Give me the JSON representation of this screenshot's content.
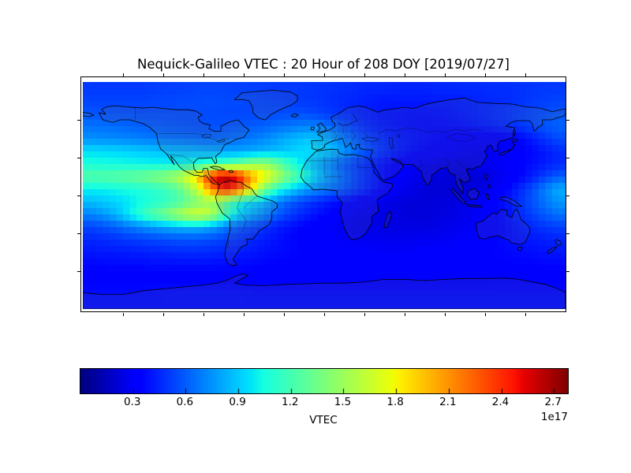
{
  "figure": {
    "title": "Nequick-Galileo VTEC : 20 Hour of 208 DOY [2019/07/27]",
    "background_color": "#ffffff"
  },
  "chart_data": {
    "type": "heatmap",
    "title": "Nequick-Galileo VTEC : 20 Hour of 208 DOY [2019/07/27]",
    "projection": "equirectangular world map",
    "colormap": "jet",
    "grid_off": true,
    "colorbar": {
      "label": "VTEC",
      "offset_label": "1e17",
      "orientation": "horizontal",
      "position": "bottom",
      "vmin": 0.0,
      "vmax": 2.78,
      "ticks": [
        0.3,
        0.6,
        0.9,
        1.2,
        1.5,
        1.8,
        2.1,
        2.4,
        2.7
      ],
      "tick_labels": [
        "0.3",
        "0.6",
        "0.9",
        "1.2",
        "1.5",
        "1.8",
        "2.1",
        "2.4",
        "2.7"
      ]
    },
    "x": {
      "label": "",
      "range": [
        -180,
        180
      ]
    },
    "y": {
      "label": "",
      "range": [
        -90,
        90
      ]
    },
    "grid": {
      "description": "VTEC values in units of 1e17, rows north-to-south (lat 85N..85S step 10), cols west-to-east (lon -175..175 step 10)",
      "n_cols": 36,
      "n_rows": 18,
      "values": [
        [
          0.5,
          0.5,
          0.5,
          0.5,
          0.5,
          0.51,
          0.52,
          0.52,
          0.53,
          0.53,
          0.53,
          0.52,
          0.52,
          0.51,
          0.5,
          0.5,
          0.5,
          0.49,
          0.48,
          0.47,
          0.46,
          0.45,
          0.45,
          0.44,
          0.44,
          0.44,
          0.45,
          0.45,
          0.46,
          0.46,
          0.47,
          0.47,
          0.48,
          0.49,
          0.5,
          0.5
        ],
        [
          0.53,
          0.53,
          0.53,
          0.53,
          0.53,
          0.54,
          0.54,
          0.55,
          0.55,
          0.56,
          0.55,
          0.55,
          0.54,
          0.53,
          0.52,
          0.51,
          0.5,
          0.49,
          0.47,
          0.45,
          0.44,
          0.42,
          0.41,
          0.41,
          0.41,
          0.41,
          0.42,
          0.42,
          0.43,
          0.44,
          0.45,
          0.46,
          0.48,
          0.5,
          0.52,
          0.53
        ],
        [
          0.58,
          0.57,
          0.56,
          0.56,
          0.55,
          0.55,
          0.55,
          0.55,
          0.55,
          0.55,
          0.54,
          0.54,
          0.54,
          0.55,
          0.55,
          0.56,
          0.56,
          0.53,
          0.5,
          0.47,
          0.44,
          0.42,
          0.4,
          0.39,
          0.38,
          0.38,
          0.39,
          0.4,
          0.42,
          0.44,
          0.46,
          0.48,
          0.51,
          0.54,
          0.56,
          0.58
        ],
        [
          0.66,
          0.65,
          0.64,
          0.62,
          0.6,
          0.59,
          0.58,
          0.57,
          0.56,
          0.56,
          0.57,
          0.58,
          0.59,
          0.61,
          0.64,
          0.67,
          0.7,
          0.7,
          0.63,
          0.55,
          0.49,
          0.44,
          0.41,
          0.39,
          0.38,
          0.37,
          0.37,
          0.38,
          0.39,
          0.41,
          0.43,
          0.46,
          0.49,
          0.53,
          0.58,
          0.62
        ],
        [
          0.74,
          0.73,
          0.72,
          0.71,
          0.69,
          0.67,
          0.65,
          0.64,
          0.63,
          0.62,
          0.63,
          0.65,
          0.68,
          0.72,
          0.78,
          0.84,
          0.88,
          0.88,
          0.8,
          0.68,
          0.58,
          0.51,
          0.46,
          0.42,
          0.4,
          0.38,
          0.36,
          0.34,
          0.32,
          0.31,
          0.3,
          0.32,
          0.35,
          0.42,
          0.49,
          0.55
        ],
        [
          0.96,
          0.95,
          0.94,
          0.92,
          0.9,
          0.88,
          0.86,
          0.85,
          0.84,
          0.82,
          0.8,
          0.79,
          0.81,
          0.84,
          0.87,
          0.91,
          0.95,
          0.94,
          0.87,
          0.76,
          0.64,
          0.54,
          0.47,
          0.42,
          0.38,
          0.35,
          0.32,
          0.3,
          0.28,
          0.27,
          0.27,
          0.29,
          0.32,
          0.36,
          0.41,
          0.46
        ],
        [
          1.06,
          1.05,
          1.04,
          1.03,
          1.02,
          1.01,
          1.01,
          1.02,
          1.07,
          1.14,
          1.2,
          1.3,
          1.45,
          1.5,
          1.35,
          1.12,
          0.95,
          0.82,
          0.7,
          0.58,
          0.5,
          0.43,
          0.38,
          0.33,
          0.29,
          0.27,
          0.25,
          0.25,
          0.25,
          0.26,
          0.28,
          0.31,
          0.34,
          0.38,
          0.42,
          0.46
        ],
        [
          1.25,
          1.26,
          1.28,
          1.31,
          1.35,
          1.41,
          1.5,
          1.65,
          1.92,
          2.45,
          2.72,
          2.55,
          2.1,
          1.82,
          1.58,
          1.33,
          1.1,
          0.9,
          0.75,
          0.62,
          0.52,
          0.44,
          0.37,
          0.31,
          0.27,
          0.24,
          0.22,
          0.21,
          0.21,
          0.22,
          0.24,
          0.28,
          0.34,
          0.42,
          0.52,
          0.6
        ],
        [
          1.0,
          1.01,
          1.03,
          1.05,
          1.08,
          1.12,
          1.2,
          1.35,
          1.62,
          2.1,
          2.5,
          2.35,
          1.88,
          1.4,
          1.1,
          0.93,
          0.8,
          0.72,
          0.65,
          0.58,
          0.5,
          0.42,
          0.35,
          0.29,
          0.25,
          0.22,
          0.21,
          0.2,
          0.21,
          0.23,
          0.27,
          0.34,
          0.44,
          0.56,
          0.7,
          0.82
        ],
        [
          0.86,
          0.89,
          0.93,
          0.98,
          1.04,
          1.1,
          1.16,
          1.26,
          1.4,
          1.5,
          1.34,
          1.06,
          0.95,
          0.85,
          0.7,
          0.6,
          0.52,
          0.46,
          0.4,
          0.36,
          0.32,
          0.28,
          0.25,
          0.23,
          0.22,
          0.22,
          0.22,
          0.23,
          0.25,
          0.28,
          0.33,
          0.39,
          0.47,
          0.57,
          0.67,
          0.76
        ],
        [
          0.7,
          0.76,
          0.85,
          1.0,
          1.15,
          1.3,
          1.45,
          1.6,
          1.7,
          1.62,
          1.25,
          0.96,
          0.82,
          0.72,
          0.6,
          0.51,
          0.44,
          0.38,
          0.34,
          0.3,
          0.28,
          0.26,
          0.24,
          0.23,
          0.22,
          0.22,
          0.23,
          0.24,
          0.26,
          0.29,
          0.33,
          0.38,
          0.45,
          0.52,
          0.6,
          0.66
        ],
        [
          0.53,
          0.56,
          0.61,
          0.67,
          0.73,
          0.78,
          0.82,
          0.85,
          0.85,
          0.8,
          0.7,
          0.6,
          0.54,
          0.48,
          0.42,
          0.38,
          0.34,
          0.31,
          0.29,
          0.27,
          0.26,
          0.25,
          0.24,
          0.24,
          0.24,
          0.24,
          0.25,
          0.26,
          0.28,
          0.3,
          0.33,
          0.37,
          0.41,
          0.45,
          0.49,
          0.52
        ],
        [
          0.45,
          0.46,
          0.48,
          0.5,
          0.52,
          0.54,
          0.56,
          0.57,
          0.57,
          0.55,
          0.52,
          0.48,
          0.45,
          0.42,
          0.39,
          0.36,
          0.34,
          0.32,
          0.31,
          0.29,
          0.28,
          0.28,
          0.27,
          0.27,
          0.27,
          0.28,
          0.28,
          0.29,
          0.31,
          0.32,
          0.34,
          0.37,
          0.39,
          0.41,
          0.43,
          0.44
        ],
        [
          0.4,
          0.41,
          0.41,
          0.42,
          0.43,
          0.44,
          0.45,
          0.46,
          0.46,
          0.45,
          0.44,
          0.42,
          0.41,
          0.39,
          0.37,
          0.36,
          0.34,
          0.33,
          0.32,
          0.31,
          0.31,
          0.3,
          0.3,
          0.3,
          0.3,
          0.31,
          0.31,
          0.32,
          0.33,
          0.34,
          0.35,
          0.36,
          0.37,
          0.38,
          0.39,
          0.4
        ],
        [
          0.36,
          0.36,
          0.37,
          0.37,
          0.37,
          0.38,
          0.38,
          0.38,
          0.38,
          0.38,
          0.37,
          0.37,
          0.36,
          0.35,
          0.34,
          0.34,
          0.33,
          0.32,
          0.32,
          0.31,
          0.31,
          0.31,
          0.31,
          0.31,
          0.31,
          0.31,
          0.32,
          0.32,
          0.33,
          0.33,
          0.34,
          0.34,
          0.35,
          0.35,
          0.36,
          0.36
        ],
        [
          0.32,
          0.32,
          0.32,
          0.32,
          0.33,
          0.33,
          0.33,
          0.33,
          0.33,
          0.33,
          0.33,
          0.32,
          0.32,
          0.32,
          0.31,
          0.31,
          0.31,
          0.3,
          0.3,
          0.3,
          0.3,
          0.3,
          0.3,
          0.3,
          0.3,
          0.3,
          0.31,
          0.31,
          0.31,
          0.31,
          0.32,
          0.32,
          0.32,
          0.32,
          0.32,
          0.32
        ],
        [
          0.37,
          0.37,
          0.37,
          0.37,
          0.37,
          0.37,
          0.38,
          0.38,
          0.38,
          0.38,
          0.38,
          0.38,
          0.37,
          0.37,
          0.37,
          0.37,
          0.37,
          0.37,
          0.37,
          0.37,
          0.37,
          0.37,
          0.37,
          0.37,
          0.37,
          0.37,
          0.37,
          0.37,
          0.37,
          0.37,
          0.37,
          0.37,
          0.37,
          0.37,
          0.37,
          0.37
        ],
        [
          0.38,
          0.38,
          0.38,
          0.38,
          0.38,
          0.38,
          0.38,
          0.38,
          0.38,
          0.38,
          0.38,
          0.38,
          0.38,
          0.38,
          0.38,
          0.38,
          0.38,
          0.38,
          0.38,
          0.38,
          0.38,
          0.38,
          0.38,
          0.38,
          0.38,
          0.38,
          0.38,
          0.38,
          0.38,
          0.38,
          0.38,
          0.38,
          0.38,
          0.38,
          0.38,
          0.38
        ]
      ]
    }
  }
}
